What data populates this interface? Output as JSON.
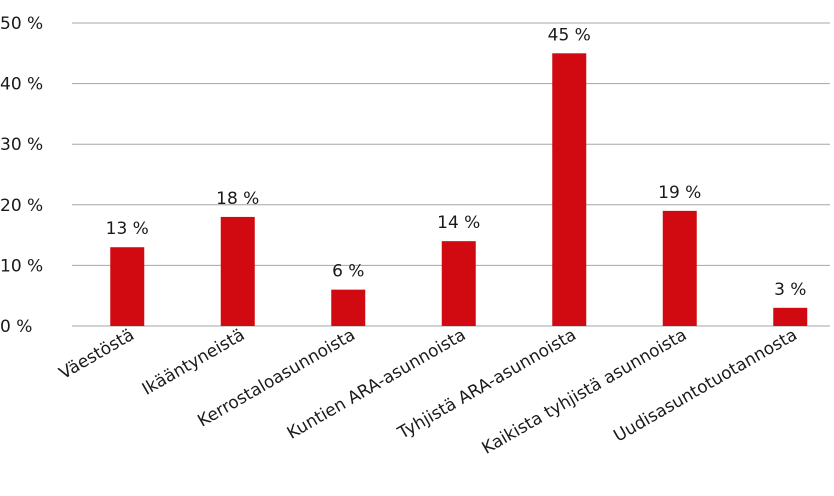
{
  "chart_data": {
    "type": "bar",
    "categories": [
      "Väestöstä",
      "Ikääntyneistä",
      "Kerrostaloasunnoista",
      "Kuntien ARA-asunnoista",
      "Tyhjistä ARA-asunnoista",
      "Kaikista tyhjistä asunnoista",
      "Uudisasuntotuotannosta"
    ],
    "values": [
      13,
      18,
      6,
      14,
      45,
      19,
      3
    ],
    "data_labels": [
      "13 %",
      "18 %",
      "6 %",
      "14 %",
      "45 %",
      "19 %",
      "3 %"
    ],
    "y_ticks": [
      0,
      10,
      20,
      30,
      40,
      50
    ],
    "y_tick_labels": [
      "0 %",
      "10 %",
      "20 %",
      "30 %",
      "40 %",
      "50 %"
    ],
    "ylim": [
      0,
      50
    ],
    "grid": true,
    "legend": "none",
    "colors": {
      "bar": "#d10a11",
      "grid": "#a6a6a6"
    }
  }
}
